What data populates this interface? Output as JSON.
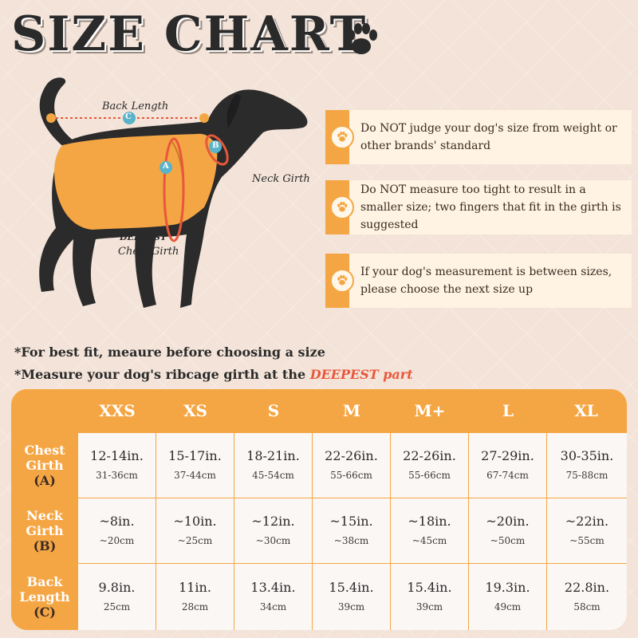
{
  "title": "SIZE CHART",
  "colors": {
    "accent": "#f5a644",
    "highlight": "#e8573a",
    "dark": "#2a2a2a"
  },
  "diagram": {
    "back_length_label": "Back Length",
    "neck_girth_label": "Neck Girth",
    "chest_label_line1": "DEEPEST",
    "chest_label_line2": "Chest Girth",
    "marker_a": "A",
    "marker_b": "B",
    "marker_c": "C"
  },
  "notes": [
    {
      "icon": "paw-icon",
      "text": "Do NOT judge your dog's size from weight or other brands' standard"
    },
    {
      "icon": "paw-icon",
      "text": "Do NOT measure too tight to result in a smaller size; two fingers that fit in the girth is suggested"
    },
    {
      "icon": "paw-icon",
      "text": "If your dog's measurement is between sizes, please choose the next size up"
    }
  ],
  "tips": {
    "line1": "*For best fit, meaure before choosing a size",
    "line2_prefix": "*Measure your dog's ribcage girth at the ",
    "line2_highlight": "DEEPEST part"
  },
  "table": {
    "sizes": [
      "XXS",
      "XS",
      "S",
      "M",
      "M+",
      "L",
      "XL"
    ],
    "rows": [
      {
        "label_line1": "Chest",
        "label_line2": "Girth",
        "code": "(A)",
        "inches": [
          "12-14in.",
          "15-17in.",
          "18-21in.",
          "22-26in.",
          "22-26in.",
          "27-29in.",
          "30-35in."
        ],
        "cm": [
          "31-36cm",
          "37-44cm",
          "45-54cm",
          "55-66cm",
          "55-66cm",
          "67-74cm",
          "75-88cm"
        ]
      },
      {
        "label_line1": "Neck",
        "label_line2": "Girth",
        "code": "(B)",
        "inches": [
          "~8in.",
          "~10in.",
          "~12in.",
          "~15in.",
          "~18in.",
          "~20in.",
          "~22in."
        ],
        "cm": [
          "~20cm",
          "~25cm",
          "~30cm",
          "~38cm",
          "~45cm",
          "~50cm",
          "~55cm"
        ]
      },
      {
        "label_line1": "Back",
        "label_line2": "Length",
        "code": "(C)",
        "inches": [
          "9.8in.",
          "11in.",
          "13.4in.",
          "15.4in.",
          "15.4in.",
          "19.3in.",
          "22.8in."
        ],
        "cm": [
          "25cm",
          "28cm",
          "34cm",
          "39cm",
          "39cm",
          "49cm",
          "58cm"
        ]
      }
    ]
  }
}
